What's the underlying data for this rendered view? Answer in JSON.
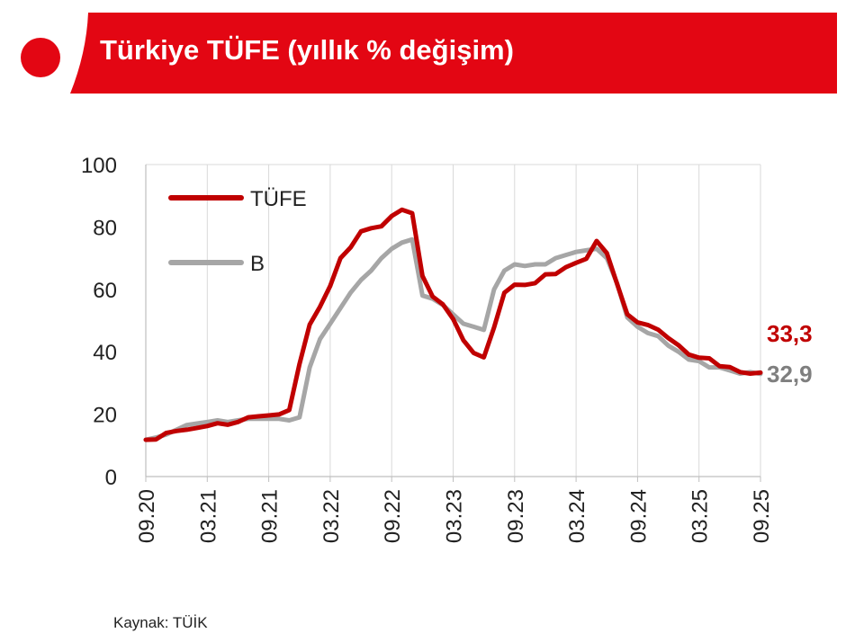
{
  "header": {
    "title": "Türkiye TÜFE (yıllık % değişim)",
    "accent_color": "#e30613"
  },
  "source": "Kaynak: TÜİK",
  "chart_data": {
    "type": "line",
    "title": "Türkiye TÜFE (yıllık % değişim)",
    "xlabel": "",
    "ylabel": "",
    "ylim": [
      0,
      100
    ],
    "yticks": [
      0,
      20,
      40,
      60,
      80,
      100
    ],
    "xticks": [
      "09.20",
      "03.21",
      "09.21",
      "03.22",
      "09.22",
      "03.23",
      "09.23",
      "03.24",
      "09.24",
      "03.25",
      "09.25"
    ],
    "grid": "vertical",
    "legend_position": "top-left",
    "x": [
      "09.20",
      "10.20",
      "11.20",
      "12.20",
      "01.21",
      "02.21",
      "03.21",
      "04.21",
      "05.21",
      "06.21",
      "07.21",
      "08.21",
      "09.21",
      "10.21",
      "11.21",
      "12.21",
      "01.22",
      "02.22",
      "03.22",
      "04.22",
      "05.22",
      "06.22",
      "07.22",
      "08.22",
      "09.22",
      "10.22",
      "11.22",
      "12.22",
      "01.23",
      "02.23",
      "03.23",
      "04.23",
      "05.23",
      "06.23",
      "07.23",
      "08.23",
      "09.23",
      "10.23",
      "11.23",
      "12.23",
      "01.24",
      "02.24",
      "03.24",
      "04.24",
      "05.24",
      "06.24",
      "07.24",
      "08.24",
      "09.24",
      "10.24",
      "11.24",
      "12.24",
      "01.25",
      "02.25",
      "03.25",
      "04.25",
      "05.25",
      "06.25",
      "07.25",
      "08.25",
      "09.25"
    ],
    "series": [
      {
        "name": "TÜFE",
        "color": "#c00000",
        "values": [
          11.8,
          11.9,
          14.0,
          14.6,
          15.0,
          15.6,
          16.2,
          17.1,
          16.6,
          17.5,
          19.0,
          19.3,
          19.6,
          19.9,
          21.3,
          36.1,
          48.7,
          54.4,
          61.1,
          70.0,
          73.5,
          78.6,
          79.6,
          80.2,
          83.5,
          85.5,
          84.4,
          64.3,
          57.7,
          55.2,
          50.5,
          43.7,
          39.6,
          38.2,
          47.8,
          58.9,
          61.5,
          61.4,
          62.0,
          64.8,
          64.9,
          67.1,
          68.5,
          69.8,
          75.5,
          71.6,
          61.8,
          52.0,
          49.4,
          48.6,
          47.1,
          44.4,
          42.1,
          39.1,
          38.1,
          37.9,
          35.4,
          35.1,
          33.5,
          33.0,
          33.3
        ]
      },
      {
        "name": "B",
        "color": "#a6a6a6",
        "values": [
          11.8,
          12.5,
          13.5,
          15.0,
          16.5,
          17.0,
          17.5,
          18.0,
          17.5,
          18.0,
          18.5,
          18.5,
          18.5,
          18.5,
          18.0,
          19.0,
          35.0,
          44.0,
          49.0,
          54.0,
          59.0,
          63.0,
          66.0,
          70.0,
          73.0,
          75.0,
          76.0,
          58.0,
          57.0,
          55.0,
          52.0,
          49.0,
          48.0,
          47.0,
          60.0,
          66.0,
          68.0,
          67.5,
          68.0,
          68.0,
          70.0,
          71.0,
          72.0,
          72.5,
          73.0,
          70.0,
          62.0,
          51.0,
          48.0,
          46.0,
          45.0,
          42.0,
          40.0,
          37.5,
          37.0,
          35.0,
          35.0,
          34.0,
          33.0,
          33.5,
          32.9
        ]
      }
    ],
    "end_labels": [
      {
        "series": "TÜFE",
        "text": "33,3",
        "color": "#c00000"
      },
      {
        "series": "B",
        "text": "32,9",
        "color": "#7f7f7f"
      }
    ]
  }
}
